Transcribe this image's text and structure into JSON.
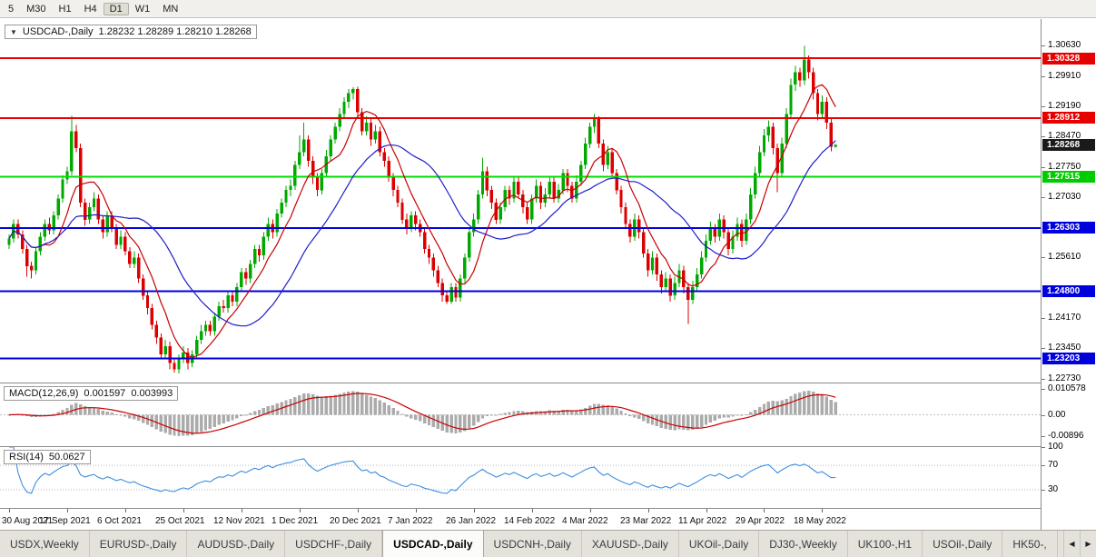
{
  "toolbar": {
    "timeframes": [
      "5",
      "M30",
      "H1",
      "H4",
      "D1",
      "W1",
      "MN"
    ],
    "active": "D1"
  },
  "chart": {
    "symbol_label": "USDCAD-,Daily",
    "ohlc_text": "1.28232 1.28289 1.28210 1.28268",
    "dropdown_icon": "▼"
  },
  "chart_data": {
    "type": "candlestick",
    "symbol": "USDCAD-,Daily",
    "title": "USDCAD-,Daily 1.28232 1.28289 1.28210 1.28268",
    "colors": {
      "up": "#00A800",
      "down": "#DC0000",
      "background": "#FFFFFF"
    },
    "x_labels": [
      "30 Aug 2021",
      "17 Sep 2021",
      "6 Oct 2021",
      "25 Oct 2021",
      "12 Nov 2021",
      "1 Dec 2021",
      "20 Dec 2021",
      "7 Jan 2022",
      "26 Jan 2022",
      "14 Feb 2022",
      "4 Mar 2022",
      "23 Mar 2022",
      "11 Apr 2022",
      "29 Apr 2022",
      "18 May 2022"
    ],
    "x_label_step": 13,
    "price_axis": {
      "ylim": [
        1.227,
        1.3115
      ],
      "ticks": [
        "1.30630",
        "1.29910",
        "1.29190",
        "1.28470",
        "1.27750",
        "1.27030",
        "1.25610",
        "1.24170",
        "1.23450",
        "1.22730"
      ],
      "badges": [
        {
          "label": "1.30328",
          "value": 1.30328,
          "color": "#E60000"
        },
        {
          "label": "1.28912",
          "value": 1.28912,
          "color": "#E60000"
        },
        {
          "label": "1.28268",
          "value": 1.28268,
          "color": "#1A1A1A",
          "current": true
        },
        {
          "label": "1.27515",
          "value": 1.27515,
          "color": "#00CC00"
        },
        {
          "label": "1.26303",
          "value": 1.26303,
          "color": "#0000DC"
        },
        {
          "label": "1.24800",
          "value": 1.248,
          "color": "#0000DC"
        },
        {
          "label": "1.23203",
          "value": 1.23203,
          "color": "#0000DC"
        }
      ]
    },
    "hlines": [
      {
        "value": 1.30328,
        "color": "#E60000"
      },
      {
        "value": 1.28912,
        "color": "#E60000"
      },
      {
        "value": 1.27515,
        "color": "#00DC00"
      },
      {
        "value": 1.26303,
        "color": "#0000DC"
      },
      {
        "value": 1.248,
        "color": "#0000DC"
      },
      {
        "value": 1.23203,
        "color": "#0000DC"
      }
    ],
    "moving_averages": [
      {
        "period": 8,
        "color": "#C80000"
      },
      {
        "period": 24,
        "color": "#1E1EC8"
      }
    ],
    "macd": {
      "label": "MACD(12,26,9)",
      "value_main": "0.001597",
      "value_signal": "0.003993",
      "fast": 12,
      "slow": 26,
      "signal": 9,
      "ylim": [
        -0.013,
        0.013
      ],
      "hist_color": "#ABABAB",
      "signal_color": "#CC0000",
      "axis_labels": [
        {
          "text": "0.010578",
          "value": 0.010578
        },
        {
          "text": "0.00",
          "value": 0
        },
        {
          "text": "-0.00896",
          "value": -0.00896
        }
      ]
    },
    "rsi": {
      "label": "RSI(14)",
      "value": "50.0627",
      "period": 14,
      "ylim": [
        0,
        100
      ],
      "levels": [
        70,
        30
      ],
      "color": "#3E8EDE",
      "level_color": "#B4B4D2",
      "axis_labels": [
        {
          "text": "100",
          "value": 100
        },
        {
          "text": "70",
          "value": 70
        },
        {
          "text": "30",
          "value": 30
        }
      ]
    },
    "candles": [
      [
        1.259,
        1.2615,
        1.258,
        1.2605
      ],
      [
        1.2605,
        1.265,
        1.2595,
        1.264
      ],
      [
        1.264,
        1.265,
        1.2605,
        1.2615
      ],
      [
        1.2615,
        1.2625,
        1.257,
        1.258
      ],
      [
        1.258,
        1.259,
        1.2515,
        1.254
      ],
      [
        1.254,
        1.255,
        1.251,
        1.253
      ],
      [
        1.253,
        1.2585,
        1.252,
        1.2575
      ],
      [
        1.2575,
        1.262,
        1.2565,
        1.261
      ],
      [
        1.261,
        1.265,
        1.26,
        1.264
      ],
      [
        1.264,
        1.2655,
        1.2615,
        1.2625
      ],
      [
        1.2625,
        1.267,
        1.2615,
        1.266
      ],
      [
        1.266,
        1.271,
        1.265,
        1.27
      ],
      [
        1.27,
        1.2755,
        1.269,
        1.2745
      ],
      [
        1.2745,
        1.2775,
        1.2735,
        1.2765
      ],
      [
        1.2765,
        1.2896,
        1.2755,
        1.286
      ],
      [
        1.286,
        1.2875,
        1.281,
        1.282
      ],
      [
        1.282,
        1.283,
        1.268,
        1.269
      ],
      [
        1.269,
        1.27,
        1.2635,
        1.265
      ],
      [
        1.265,
        1.269,
        1.264,
        1.268
      ],
      [
        1.268,
        1.2715,
        1.267,
        1.27
      ],
      [
        1.27,
        1.271,
        1.264,
        1.265
      ],
      [
        1.265,
        1.266,
        1.2605,
        1.262
      ],
      [
        1.262,
        1.267,
        1.261,
        1.266
      ],
      [
        1.266,
        1.267,
        1.262,
        1.263
      ],
      [
        1.263,
        1.264,
        1.258,
        1.259
      ],
      [
        1.259,
        1.2625,
        1.258,
        1.261
      ],
      [
        1.261,
        1.262,
        1.2565,
        1.2575
      ],
      [
        1.2575,
        1.2585,
        1.2535,
        1.2545
      ],
      [
        1.2545,
        1.2575,
        1.2535,
        1.256
      ],
      [
        1.256,
        1.257,
        1.25,
        1.251
      ],
      [
        1.251,
        1.252,
        1.246,
        1.247
      ],
      [
        1.247,
        1.248,
        1.2425,
        1.244
      ],
      [
        1.244,
        1.245,
        1.239,
        1.24
      ],
      [
        1.24,
        1.241,
        1.2355,
        1.237
      ],
      [
        1.237,
        1.238,
        1.232,
        1.233
      ],
      [
        1.233,
        1.2365,
        1.232,
        1.235
      ],
      [
        1.235,
        1.236,
        1.2295,
        1.231
      ],
      [
        1.231,
        1.232,
        1.2287,
        1.2295
      ],
      [
        1.2295,
        1.233,
        1.2285,
        1.232
      ],
      [
        1.232,
        1.235,
        1.231,
        1.2335
      ],
      [
        1.2335,
        1.2345,
        1.2295,
        1.231
      ],
      [
        1.231,
        1.234,
        1.23,
        1.233
      ],
      [
        1.233,
        1.2375,
        1.232,
        1.2365
      ],
      [
        1.2365,
        1.24,
        1.2355,
        1.2385
      ],
      [
        1.2385,
        1.241,
        1.2375,
        1.24
      ],
      [
        1.24,
        1.241,
        1.2375,
        1.2385
      ],
      [
        1.2385,
        1.243,
        1.2375,
        1.242
      ],
      [
        1.242,
        1.2455,
        1.241,
        1.2445
      ],
      [
        1.2445,
        1.246,
        1.243,
        1.244
      ],
      [
        1.244,
        1.248,
        1.243,
        1.247
      ],
      [
        1.247,
        1.248,
        1.2445,
        1.2455
      ],
      [
        1.2455,
        1.25,
        1.2445,
        1.249
      ],
      [
        1.249,
        1.2535,
        1.248,
        1.2525
      ],
      [
        1.2525,
        1.2535,
        1.2495,
        1.251
      ],
      [
        1.251,
        1.2555,
        1.25,
        1.2545
      ],
      [
        1.2545,
        1.259,
        1.2535,
        1.258
      ],
      [
        1.258,
        1.259,
        1.255,
        1.2565
      ],
      [
        1.2565,
        1.262,
        1.2555,
        1.261
      ],
      [
        1.261,
        1.2655,
        1.26,
        1.264
      ],
      [
        1.264,
        1.265,
        1.2605,
        1.262
      ],
      [
        1.262,
        1.2675,
        1.261,
        1.2665
      ],
      [
        1.2665,
        1.27,
        1.2655,
        1.269
      ],
      [
        1.269,
        1.273,
        1.268,
        1.272
      ],
      [
        1.272,
        1.2745,
        1.2705,
        1.273
      ],
      [
        1.273,
        1.279,
        1.272,
        1.278
      ],
      [
        1.278,
        1.285,
        1.277,
        1.281
      ],
      [
        1.281,
        1.288,
        1.28,
        1.284
      ],
      [
        1.284,
        1.285,
        1.2775,
        1.279
      ],
      [
        1.279,
        1.28,
        1.2735,
        1.275
      ],
      [
        1.275,
        1.276,
        1.2705,
        1.272
      ],
      [
        1.272,
        1.277,
        1.271,
        1.276
      ],
      [
        1.276,
        1.2815,
        1.275,
        1.28
      ],
      [
        1.28,
        1.285,
        1.279,
        1.284
      ],
      [
        1.284,
        1.288,
        1.283,
        1.287
      ],
      [
        1.287,
        1.2915,
        1.286,
        1.29
      ],
      [
        1.29,
        1.294,
        1.289,
        1.293
      ],
      [
        1.293,
        1.296,
        1.2915,
        1.295
      ],
      [
        1.295,
        1.2964,
        1.2935,
        1.296
      ],
      [
        1.296,
        1.2965,
        1.2895,
        1.2905
      ],
      [
        1.2905,
        1.2915,
        1.285,
        1.286
      ],
      [
        1.286,
        1.2895,
        1.285,
        1.288
      ],
      [
        1.288,
        1.289,
        1.2825,
        1.284
      ],
      [
        1.284,
        1.2875,
        1.283,
        1.286
      ],
      [
        1.286,
        1.287,
        1.28,
        1.281
      ],
      [
        1.281,
        1.282,
        1.2775,
        1.279
      ],
      [
        1.279,
        1.28,
        1.274,
        1.275
      ],
      [
        1.275,
        1.276,
        1.2705,
        1.272
      ],
      [
        1.272,
        1.273,
        1.268,
        1.269
      ],
      [
        1.269,
        1.27,
        1.264,
        1.265
      ],
      [
        1.265,
        1.2665,
        1.2615,
        1.263
      ],
      [
        1.263,
        1.267,
        1.262,
        1.266
      ],
      [
        1.266,
        1.267,
        1.2625,
        1.264
      ],
      [
        1.264,
        1.265,
        1.261,
        1.262
      ],
      [
        1.262,
        1.263,
        1.257,
        1.258
      ],
      [
        1.258,
        1.259,
        1.2545,
        1.256
      ],
      [
        1.256,
        1.257,
        1.2515,
        1.253
      ],
      [
        1.253,
        1.254,
        1.249,
        1.25
      ],
      [
        1.25,
        1.251,
        1.2455,
        1.247
      ],
      [
        1.247,
        1.248,
        1.245,
        1.2455
      ],
      [
        1.2455,
        1.25,
        1.245,
        1.249
      ],
      [
        1.249,
        1.25,
        1.2455,
        1.2465
      ],
      [
        1.2465,
        1.252,
        1.2455,
        1.251
      ],
      [
        1.251,
        1.257,
        1.25,
        1.256
      ],
      [
        1.256,
        1.263,
        1.255,
        1.262
      ],
      [
        1.262,
        1.2665,
        1.261,
        1.265
      ],
      [
        1.265,
        1.272,
        1.264,
        1.271
      ],
      [
        1.271,
        1.2797,
        1.27,
        1.2765
      ],
      [
        1.2765,
        1.2775,
        1.2705,
        1.272
      ],
      [
        1.272,
        1.273,
        1.2675,
        1.269
      ],
      [
        1.269,
        1.27,
        1.264,
        1.265
      ],
      [
        1.265,
        1.269,
        1.264,
        1.268
      ],
      [
        1.268,
        1.273,
        1.267,
        1.272
      ],
      [
        1.272,
        1.273,
        1.2685,
        1.27
      ],
      [
        1.27,
        1.275,
        1.269,
        1.274
      ],
      [
        1.274,
        1.275,
        1.27,
        1.271
      ],
      [
        1.271,
        1.272,
        1.2665,
        1.268
      ],
      [
        1.268,
        1.269,
        1.264,
        1.265
      ],
      [
        1.265,
        1.271,
        1.264,
        1.27
      ],
      [
        1.27,
        1.2745,
        1.269,
        1.273
      ],
      [
        1.273,
        1.274,
        1.2675,
        1.269
      ],
      [
        1.269,
        1.2725,
        1.268,
        1.271
      ],
      [
        1.271,
        1.275,
        1.27,
        1.274
      ],
      [
        1.274,
        1.275,
        1.269,
        1.27
      ],
      [
        1.27,
        1.2735,
        1.269,
        1.272
      ],
      [
        1.272,
        1.277,
        1.271,
        1.276
      ],
      [
        1.276,
        1.277,
        1.2715,
        1.273
      ],
      [
        1.273,
        1.274,
        1.269,
        1.27
      ],
      [
        1.27,
        1.2755,
        1.269,
        1.274
      ],
      [
        1.274,
        1.279,
        1.273,
        1.278
      ],
      [
        1.278,
        1.2845,
        1.277,
        1.283
      ],
      [
        1.283,
        1.288,
        1.282,
        1.287
      ],
      [
        1.287,
        1.2901,
        1.2855,
        1.289
      ],
      [
        1.289,
        1.2895,
        1.282,
        1.283
      ],
      [
        1.283,
        1.284,
        1.2765,
        1.278
      ],
      [
        1.278,
        1.2825,
        1.277,
        1.281
      ],
      [
        1.281,
        1.282,
        1.275,
        1.276
      ],
      [
        1.276,
        1.277,
        1.271,
        1.272
      ],
      [
        1.272,
        1.273,
        1.2665,
        1.268
      ],
      [
        1.268,
        1.269,
        1.263,
        1.264
      ],
      [
        1.264,
        1.265,
        1.2595,
        1.261
      ],
      [
        1.261,
        1.2665,
        1.26,
        1.265
      ],
      [
        1.265,
        1.266,
        1.2605,
        1.262
      ],
      [
        1.262,
        1.263,
        1.256,
        1.257
      ],
      [
        1.257,
        1.258,
        1.2515,
        1.253
      ],
      [
        1.253,
        1.2575,
        1.252,
        1.256
      ],
      [
        1.256,
        1.257,
        1.2505,
        1.252
      ],
      [
        1.252,
        1.253,
        1.2475,
        1.249
      ],
      [
        1.249,
        1.2525,
        1.248,
        1.251
      ],
      [
        1.251,
        1.252,
        1.2455,
        1.247
      ],
      [
        1.247,
        1.2515,
        1.246,
        1.25
      ],
      [
        1.25,
        1.2545,
        1.249,
        1.253
      ],
      [
        1.253,
        1.254,
        1.2475,
        1.249
      ],
      [
        1.249,
        1.25,
        1.2403,
        1.246
      ],
      [
        1.246,
        1.2505,
        1.245,
        1.249
      ],
      [
        1.249,
        1.2535,
        1.248,
        1.252
      ],
      [
        1.252,
        1.2575,
        1.251,
        1.256
      ],
      [
        1.256,
        1.2615,
        1.255,
        1.26
      ],
      [
        1.26,
        1.2645,
        1.259,
        1.263
      ],
      [
        1.263,
        1.264,
        1.2595,
        1.261
      ],
      [
        1.261,
        1.2665,
        1.26,
        1.265
      ],
      [
        1.265,
        1.266,
        1.2605,
        1.262
      ],
      [
        1.262,
        1.263,
        1.2565,
        1.258
      ],
      [
        1.258,
        1.2625,
        1.257,
        1.261
      ],
      [
        1.261,
        1.2655,
        1.26,
        1.264
      ],
      [
        1.264,
        1.265,
        1.2585,
        1.26
      ],
      [
        1.26,
        1.2665,
        1.259,
        1.265
      ],
      [
        1.265,
        1.2725,
        1.264,
        1.271
      ],
      [
        1.271,
        1.2775,
        1.27,
        1.276
      ],
      [
        1.276,
        1.2825,
        1.275,
        1.281
      ],
      [
        1.281,
        1.2865,
        1.28,
        1.285
      ],
      [
        1.285,
        1.2885,
        1.2835,
        1.287
      ],
      [
        1.287,
        1.288,
        1.2805,
        1.282
      ],
      [
        1.282,
        1.283,
        1.2715,
        1.276
      ],
      [
        1.276,
        1.2845,
        1.275,
        1.283
      ],
      [
        1.283,
        1.2915,
        1.282,
        1.29
      ],
      [
        1.29,
        1.2985,
        1.289,
        1.297
      ],
      [
        1.297,
        1.3015,
        1.2955,
        1.3
      ],
      [
        1.3,
        1.301,
        1.2965,
        1.298
      ],
      [
        1.298,
        1.3062,
        1.297,
        1.303
      ],
      [
        1.303,
        1.304,
        1.2985,
        1.3
      ],
      [
        1.3,
        1.301,
        1.2935,
        1.295
      ],
      [
        1.295,
        1.296,
        1.2885,
        1.29
      ],
      [
        1.29,
        1.2945,
        1.289,
        1.293
      ],
      [
        1.293,
        1.294,
        1.2865,
        1.288
      ],
      [
        1.288,
        1.289,
        1.2812,
        1.2823
      ],
      [
        1.28232,
        1.28289,
        1.2821,
        1.28268
      ]
    ]
  },
  "tabs": {
    "items": [
      {
        "label": "USDX,Weekly"
      },
      {
        "label": "EURUSD-,Daily"
      },
      {
        "label": "AUDUSD-,Daily"
      },
      {
        "label": "USDCHF-,Daily"
      },
      {
        "label": "USDCAD-,Daily"
      },
      {
        "label": "USDCNH-,Daily"
      },
      {
        "label": "XAUUSD-,Daily"
      },
      {
        "label": "UKOil-,Daily"
      },
      {
        "label": "DJ30-,Weekly"
      },
      {
        "label": "UK100-,H1"
      },
      {
        "label": "USOil-,Daily"
      },
      {
        "label": "HK50-,"
      }
    ],
    "active": "USDCAD-,Daily",
    "scroll_left_icon": "◀",
    "scroll_right_icon": "▶"
  }
}
